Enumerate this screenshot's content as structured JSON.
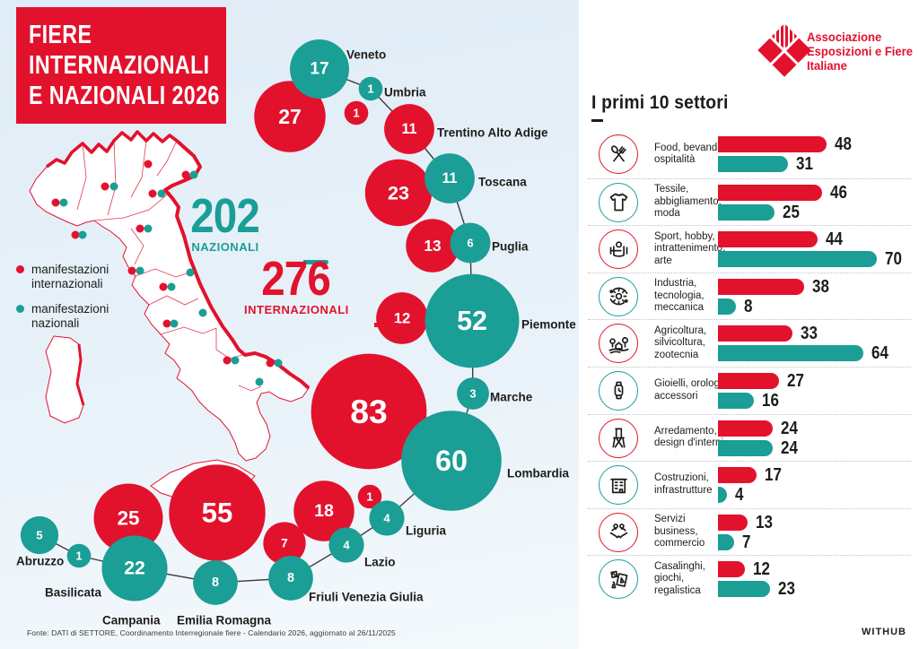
{
  "title": {
    "lines": [
      "FIERE",
      "INTERNAZIONALI",
      "E NAZIONALI 2026"
    ]
  },
  "totals": {
    "nazionali": {
      "value": "202",
      "label": "NAZIONALI"
    },
    "internazionali": {
      "value": "276",
      "label": "INTERNAZIONALI"
    }
  },
  "legend": {
    "internazionali": "manifestazioni internazionali",
    "nazionali": "manifestazioni nazionali"
  },
  "logo": {
    "lines": [
      "Associazione",
      "Esposizioni e Fiere",
      "Italiane"
    ]
  },
  "sectors_heading": "I primi 10 settori",
  "colors": {
    "internazionali": "#e2122d",
    "nazionali": "#1a9e96",
    "ink": "#1d1d1b"
  },
  "chart_data": [
    {
      "type": "bubble-map",
      "title": "Fiere internazionali e nazionali 2026 per regione",
      "legend": [
        "manifestazioni internazionali",
        "manifestazioni nazionali"
      ],
      "totals": {
        "nazionali": 202,
        "internazionali": 276
      },
      "regions": [
        {
          "name": "Abruzzo",
          "internazionali": null,
          "nazionali": 5
        },
        {
          "name": "Basilicata",
          "internazionali": null,
          "nazionali": 1
        },
        {
          "name": "Campania",
          "internazionali": 25,
          "nazionali": 22
        },
        {
          "name": "Emilia Romagna",
          "internazionali": 55,
          "nazionali": 8
        },
        {
          "name": "Friuli Venezia Giulia",
          "internazionali": 7,
          "nazionali": 8
        },
        {
          "name": "Lazio",
          "internazionali": 18,
          "nazionali": 4
        },
        {
          "name": "Liguria",
          "internazionali": 1,
          "nazionali": 4
        },
        {
          "name": "Lombardia",
          "internazionali": 83,
          "nazionali": 60
        },
        {
          "name": "Marche",
          "internazionali": null,
          "nazionali": 3
        },
        {
          "name": "Piemonte",
          "internazionali": 12,
          "nazionali": 52
        },
        {
          "name": "Puglia",
          "internazionali": 13,
          "nazionali": 6
        },
        {
          "name": "Toscana",
          "internazionali": 23,
          "nazionali": 11
        },
        {
          "name": "Trentino Alto Adige",
          "internazionali": 11,
          "nazionali": null
        },
        {
          "name": "Umbria",
          "internazionali": 1,
          "nazionali": 1
        },
        {
          "name": "Veneto",
          "internazionali": 27,
          "nazionali": 17
        }
      ]
    },
    {
      "type": "bar",
      "title": "I primi 10 settori",
      "series_names": [
        "internazionali",
        "nazionali"
      ],
      "sectors": [
        {
          "label": "Food, bevande, ospitalità",
          "label_lines": [
            "Food, bevande,",
            "ospitalità"
          ],
          "icon": "cutlery-icon",
          "internazionali": 48,
          "nazionali": 31
        },
        {
          "label": "Tessile, abbigliamento, moda",
          "label_lines": [
            "Tessile,",
            "abbigliamento,",
            "moda"
          ],
          "icon": "tshirt-icon",
          "internazionali": 46,
          "nazionali": 25
        },
        {
          "label": "Sport, hobby, intrattenimento, arte",
          "label_lines": [
            "Sport, hobby,",
            "intrattenimento,",
            "arte"
          ],
          "icon": "sport-icon",
          "internazionali": 44,
          "nazionali": 70
        },
        {
          "label": "Industria, tecnologia, meccanica",
          "label_lines": [
            "Industria,",
            "tecnologia,",
            "meccanica"
          ],
          "icon": "gear-icon",
          "internazionali": 38,
          "nazionali": 8
        },
        {
          "label": "Agricoltura, silvicoltura, zootecnia",
          "label_lines": [
            "Agricoltura,",
            "silvicoltura,",
            "zootecnia"
          ],
          "icon": "farm-icon",
          "internazionali": 33,
          "nazionali": 64
        },
        {
          "label": "Gioielli, orologi, accessori",
          "label_lines": [
            "Gioielli, orologi,",
            "accessori"
          ],
          "icon": "watch-icon",
          "internazionali": 27,
          "nazionali": 16
        },
        {
          "label": "Arredamento, design d'interni",
          "label_lines": [
            "Arredamento,",
            "design d'interni"
          ],
          "icon": "chair-icon",
          "internazionali": 24,
          "nazionali": 24
        },
        {
          "label": "Costruzioni, infrastrutture",
          "label_lines": [
            "Costruzioni,",
            "infrastrutture"
          ],
          "icon": "building-icon",
          "internazionali": 17,
          "nazionali": 4
        },
        {
          "label": "Servizi business, commercio",
          "label_lines": [
            "Servizi",
            "business,",
            "commercio"
          ],
          "icon": "handshake-icon",
          "internazionali": 13,
          "nazionali": 7
        },
        {
          "label": "Casalinghi, giochi, regalistica",
          "label_lines": [
            "Casalinghi,",
            "giochi,",
            "regalistica"
          ],
          "icon": "gift-icon",
          "internazionali": 12,
          "nazionali": 23
        }
      ]
    }
  ],
  "footer": {
    "source": "Fonte: DATI di SETTORE, Coordinamento Interregionale fiere - Calendario 2026, aggiornato al 26/11/2025",
    "credit": "WITHUB"
  }
}
